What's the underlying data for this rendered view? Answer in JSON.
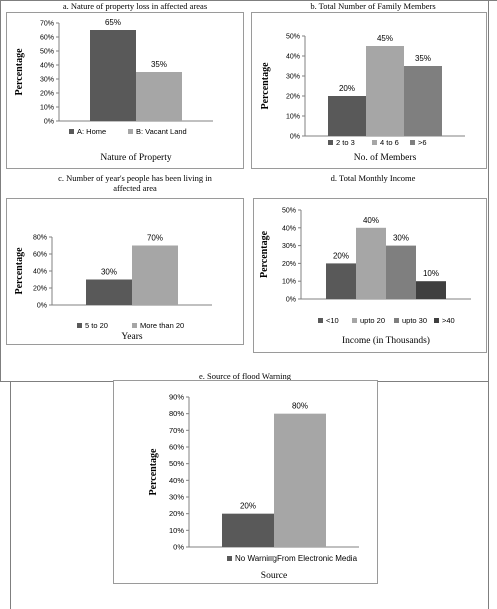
{
  "colors": {
    "dark": "#595959",
    "light": "#a6a6a6",
    "mid": "#7f7f7f",
    "darker": "#3f3f3f",
    "axis": "#808080"
  },
  "charts": [
    {
      "caption": "a.    Nature of property loss in affected areas",
      "ylabel": "Percentage",
      "xlabel": "Nature of Property",
      "chart_data": {
        "type": "bar",
        "categories": [
          "A: Home",
          "B: Vacant Land"
        ],
        "values": [
          65,
          35
        ],
        "value_labels": [
          "65%",
          "35%"
        ],
        "ylim": [
          0,
          70
        ],
        "yticks": [
          "0%",
          "10%",
          "20%",
          "30%",
          "40%",
          "50%",
          "60%",
          "70%"
        ],
        "legend_placement": "bottom",
        "grid": false
      }
    },
    {
      "caption": "b.    Total Number of Family Members",
      "ylabel": "Percentage",
      "xlabel": "No. of Members",
      "chart_data": {
        "type": "bar",
        "categories": [
          "2 to 3",
          "4 to 6",
          ">6"
        ],
        "values": [
          20,
          45,
          35
        ],
        "value_labels": [
          "20%",
          "45%",
          "35%"
        ],
        "ylim": [
          0,
          50
        ],
        "yticks": [
          "0%",
          "10%",
          "20%",
          "30%",
          "40%",
          "50%"
        ],
        "legend_placement": "bottom",
        "grid": false
      }
    },
    {
      "caption_line1": "c.    Number of year's people has been living in",
      "caption_line2": "affected area",
      "ylabel": "Percentage",
      "xlabel": "Years",
      "chart_data": {
        "type": "bar",
        "categories": [
          "5 to 20",
          "More than 20"
        ],
        "values": [
          30,
          70
        ],
        "value_labels": [
          "30%",
          "70%"
        ],
        "ylim": [
          0,
          80
        ],
        "yticks": [
          "0%",
          "20%",
          "40%",
          "60%",
          "80%"
        ],
        "legend_placement": "bottom",
        "grid": false
      }
    },
    {
      "caption": "d.    Total Monthly Income",
      "ylabel": "Percentage",
      "xlabel": "Income (in Thousands)",
      "chart_data": {
        "type": "bar",
        "categories": [
          "<10",
          "upto 20",
          "upto 30",
          ">40"
        ],
        "values": [
          20,
          40,
          30,
          10
        ],
        "value_labels": [
          "20%",
          "40%",
          "30%",
          "10%"
        ],
        "ylim": [
          0,
          50
        ],
        "yticks": [
          "0%",
          "10%",
          "20%",
          "30%",
          "40%",
          "50%"
        ],
        "legend_placement": "bottom",
        "grid": false
      }
    },
    {
      "caption": "e.    Source of flood Warning",
      "ylabel": "Percentage",
      "xlabel": "Source",
      "chart_data": {
        "type": "bar",
        "categories": [
          "No Warning",
          "From Electronic Media"
        ],
        "values": [
          20,
          80
        ],
        "value_labels": [
          "20%",
          "80%"
        ],
        "ylim": [
          0,
          90
        ],
        "yticks": [
          "0%",
          "10%",
          "20%",
          "30%",
          "40%",
          "50%",
          "60%",
          "70%",
          "80%",
          "90%"
        ],
        "legend_placement": "bottom",
        "grid": false
      }
    }
  ]
}
